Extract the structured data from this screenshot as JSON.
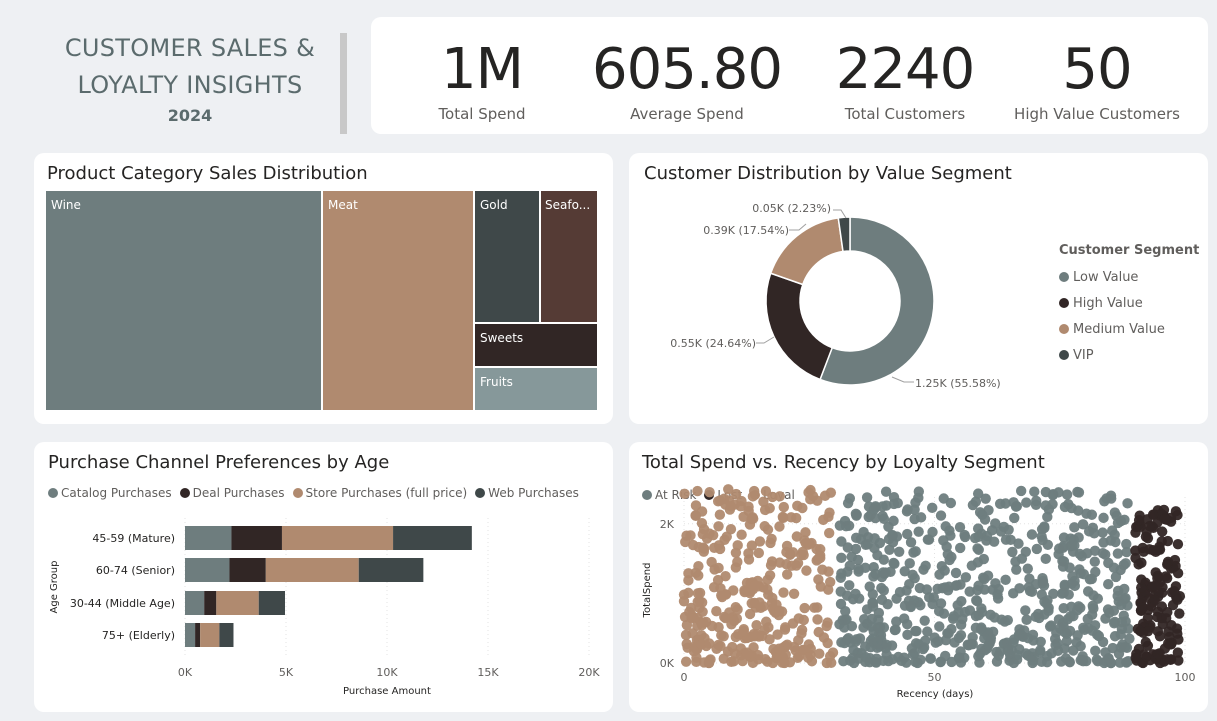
{
  "header": {
    "title_line1": "CUSTOMER SALES &",
    "title_line2": "LOYALTY INSIGHTS",
    "year": "2024"
  },
  "kpis": [
    {
      "value": "1M",
      "label": "Total Spend"
    },
    {
      "value": "605.80",
      "label": "Average Spend"
    },
    {
      "value": "2240",
      "label": "Total Customers"
    },
    {
      "value": "50",
      "label": "High Value Customers"
    }
  ],
  "colors": {
    "slate": "#6e7d7e",
    "dark": "#312625",
    "tan": "#b08a6f",
    "charcoal": "#3f4849",
    "brown": "#553b35",
    "grey_light": "#86989a"
  },
  "treemap": {
    "title": "Product Category Sales Distribution",
    "tiles": [
      {
        "label": "Wine",
        "color": "#6e7d7e"
      },
      {
        "label": "Meat",
        "color": "#b08a6f"
      },
      {
        "label": "Gold",
        "color": "#3f4849"
      },
      {
        "label": "Seafo...",
        "color": "#553b35"
      },
      {
        "label": "Sweets",
        "color": "#312625"
      },
      {
        "label": "Fruits",
        "color": "#86989a"
      }
    ]
  },
  "donut": {
    "title": "Customer Distribution by Value Segment",
    "legend_title": "Customer Segment",
    "legend": [
      {
        "label": "Low Value",
        "color": "#6e7d7e"
      },
      {
        "label": "High Value",
        "color": "#312625"
      },
      {
        "label": "Medium Value",
        "color": "#b08a6f"
      },
      {
        "label": "VIP",
        "color": "#3f4849"
      }
    ]
  },
  "channel": {
    "title": "Purchase Channel Preferences by Age",
    "legend": [
      {
        "label": "Catalog Purchases",
        "color": "#6e7d7e"
      },
      {
        "label": "Deal Purchases",
        "color": "#312625"
      },
      {
        "label": "Store Purchases (full price)",
        "color": "#b08a6f"
      },
      {
        "label": "Web Purchases",
        "color": "#3f4849"
      }
    ],
    "y_label": "Age Group",
    "x_label": "Purchase Amount"
  },
  "scatter": {
    "title": "Total Spend vs. Recency by Loyalty Segment",
    "legend": [
      {
        "label": "At Risk",
        "color": "#6e7d7e"
      },
      {
        "label": "Lost",
        "color": "#312625"
      },
      {
        "label": "Loyal",
        "color": "#b08a6f"
      }
    ],
    "x_label": "Recency (days)",
    "y_label": "TotalSpend"
  },
  "chart_data": [
    {
      "type": "treemap",
      "title": "Product Category Sales Distribution",
      "categories": [
        "Wine",
        "Meat",
        "Gold",
        "Seafo...",
        "Sweets",
        "Fruits"
      ],
      "values": [
        680816,
        373968,
        98609,
        84057,
        60621,
        58917
      ]
    },
    {
      "type": "pie",
      "title": "Customer Distribution by Value Segment",
      "categories": [
        "Low Value",
        "High Value",
        "Medium Value",
        "VIP"
      ],
      "values": [
        1.25,
        0.55,
        0.39,
        0.05
      ],
      "data_labels": [
        "1.25K (55.58%)",
        "0.55K (24.64%)",
        "0.39K (17.54%)",
        "0.05K (2.23%)"
      ],
      "donut": true,
      "legend": "right"
    },
    {
      "type": "bar",
      "orientation": "horizontal",
      "stacked": true,
      "title": "Purchase Channel Preferences by Age",
      "categories": [
        "45-59 (Mature)",
        "60-74 (Senior)",
        "30-44 (Middle Age)",
        "75+ (Elderly)"
      ],
      "series": [
        {
          "name": "Catalog Purchases",
          "values": [
            2300,
            2200,
            950,
            500
          ]
        },
        {
          "name": "Deal Purchases",
          "values": [
            2500,
            1800,
            600,
            250
          ]
        },
        {
          "name": "Store Purchases (full price)",
          "values": [
            5500,
            4600,
            2100,
            950
          ]
        },
        {
          "name": "Web Purchases",
          "values": [
            3900,
            3200,
            1300,
            700
          ]
        }
      ],
      "xlabel": "Purchase Amount",
      "ylabel": "Age Group",
      "xlim": [
        0,
        20000
      ],
      "x_ticks": [
        "0K",
        "5K",
        "10K",
        "15K",
        "20K"
      ],
      "legend": "top-left"
    },
    {
      "type": "scatter",
      "title": "Total Spend vs. Recency by Loyalty Segment",
      "series": [
        {
          "name": "Loyal",
          "x_range": [
            0,
            30
          ],
          "y_range": [
            0,
            2500
          ]
        },
        {
          "name": "At Risk",
          "x_range": [
            31,
            89
          ],
          "y_range": [
            0,
            2500
          ]
        },
        {
          "name": "Lost",
          "x_range": [
            90,
            99
          ],
          "y_range": [
            0,
            2200
          ]
        }
      ],
      "xlabel": "Recency (days)",
      "ylabel": "TotalSpend",
      "xlim": [
        0,
        100
      ],
      "ylim": [
        0,
        2600
      ],
      "x_ticks": [
        "0",
        "50",
        "100"
      ],
      "y_ticks": [
        "0K",
        "2K"
      ],
      "legend": "top-left"
    }
  ]
}
